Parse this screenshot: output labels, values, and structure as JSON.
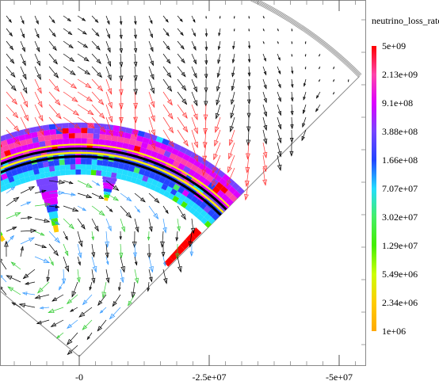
{
  "chart_data": {
    "type": "heatmap",
    "colorbar": {
      "title": "neutrino_loss_rate",
      "tick_labels": [
        "5e+09",
        "2.13e+09",
        "9.1e+08",
        "3.88e+08",
        "1.66e+08",
        "7.07e+07",
        "3.02e+07",
        "1.29e+07",
        "5.49e+06",
        "2.34e+06",
        "1e+06"
      ],
      "colors": [
        "#ff0000",
        "#ff44aa",
        "#dd00ff",
        "#7744ff",
        "#2244ff",
        "#22ddff",
        "#44ee66",
        "#44ee00",
        "#ccff00",
        "#ffcc00",
        "#ffaa00"
      ],
      "scale": "log",
      "range": [
        1000000.0,
        5000000000.0
      ]
    },
    "x_axis": {
      "tick_labels": [
        "-0",
        "-2.5e+07",
        "-5e+07"
      ],
      "tick_values": [
        0,
        -25000000.0,
        -50000000.0
      ]
    },
    "wedge": {
      "opening_angle_deg": 90,
      "outer_boundary_radius": 76000000.0,
      "shell_inner_radius": 35000000.0,
      "shell_outer_radius": 45000000.0
    },
    "vector_field": {
      "present": true,
      "arrow_colors_by_magnitude": [
        "#000000",
        "#ff3333",
        "#33cc33",
        "#3399ff",
        "#888888"
      ]
    },
    "grid": false
  }
}
